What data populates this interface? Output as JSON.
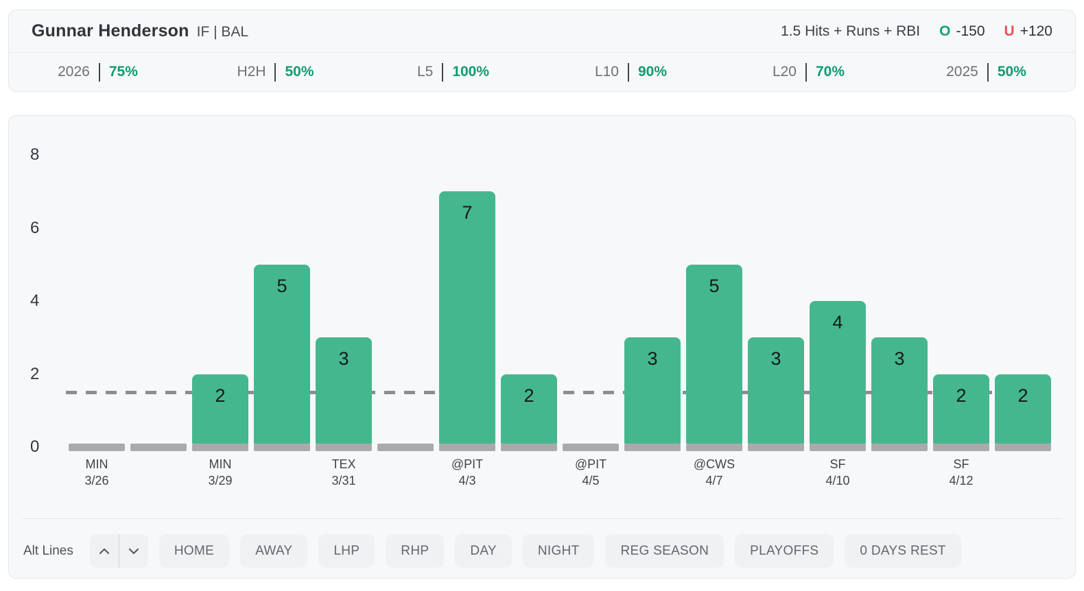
{
  "header": {
    "player_name": "Gunnar Henderson",
    "position_team": "IF | BAL",
    "market_label": "1.5 Hits + Runs + RBI",
    "over": {
      "symbol": "O",
      "odds": "-150"
    },
    "under": {
      "symbol": "U",
      "odds": "+120"
    }
  },
  "splits": [
    {
      "label": "2026",
      "value": "75%"
    },
    {
      "label": "H2H",
      "value": "50%"
    },
    {
      "label": "L5",
      "value": "100%"
    },
    {
      "label": "L10",
      "value": "90%"
    },
    {
      "label": "L20",
      "value": "70%"
    },
    {
      "label": "2025",
      "value": "50%"
    }
  ],
  "chart_data": {
    "type": "bar",
    "title": "",
    "xlabel": "",
    "ylabel": "",
    "ylim": [
      0,
      8
    ],
    "y_ticks": [
      0,
      2,
      4,
      6,
      8
    ],
    "prop_line": 1.5,
    "grid": false,
    "legend": "none",
    "games": [
      {
        "opponent": "MIN",
        "date": "3/26",
        "value": 0
      },
      {
        "opponent": "",
        "date": "",
        "value": 0
      },
      {
        "opponent": "MIN",
        "date": "3/29",
        "value": 2
      },
      {
        "opponent": "",
        "date": "",
        "value": 5
      },
      {
        "opponent": "TEX",
        "date": "3/31",
        "value": 3
      },
      {
        "opponent": "",
        "date": "",
        "value": 0
      },
      {
        "opponent": "@PIT",
        "date": "4/3",
        "value": 7
      },
      {
        "opponent": "",
        "date": "",
        "value": 2
      },
      {
        "opponent": "@PIT",
        "date": "4/5",
        "value": 0
      },
      {
        "opponent": "",
        "date": "",
        "value": 3
      },
      {
        "opponent": "@CWS",
        "date": "4/7",
        "value": 5
      },
      {
        "opponent": "",
        "date": "",
        "value": 3
      },
      {
        "opponent": "SF",
        "date": "4/10",
        "value": 4
      },
      {
        "opponent": "",
        "date": "",
        "value": 3
      },
      {
        "opponent": "SF",
        "date": "4/12",
        "value": 2
      },
      {
        "opponent": "",
        "date": "",
        "value": 2
      }
    ],
    "colors": {
      "bar_green": "#45b78f",
      "zero_gray": "#a9aaab",
      "line_gray": "#8b8d90"
    }
  },
  "controls": {
    "alt_lines_label": "Alt Lines",
    "stepper_icons": [
      "chevron-up",
      "chevron-down"
    ],
    "filters": [
      "HOME",
      "AWAY",
      "LHP",
      "RHP",
      "DAY",
      "NIGHT",
      "REG SEASON",
      "PLAYOFFS",
      "0 DAYS REST"
    ]
  },
  "colors": {
    "over_green": "#16a372",
    "under_red": "#e85157",
    "split_value_green": "#0f9c6e"
  }
}
